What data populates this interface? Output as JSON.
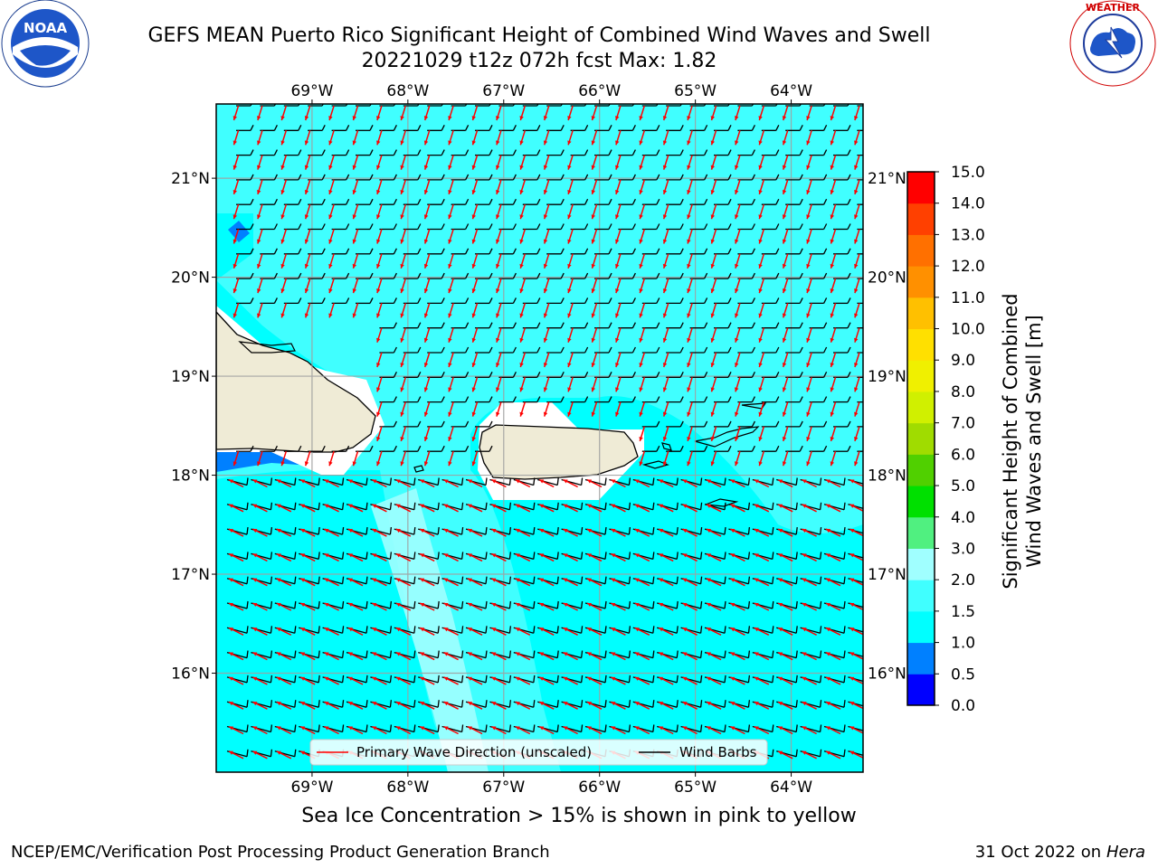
{
  "title": {
    "line1": "GEFS MEAN Puerto Rico Significant Height of Combined Wind Waves and Swell",
    "line2": "20221029 t12z 072h fcst   Max: 1.82"
  },
  "logos": {
    "left": {
      "name": "NOAA",
      "ring_text": "NATIONAL OCEANIC AND ATMOSPHERIC ADMINISTRATION",
      "bottom_text": "U.S. DEPARTMENT OF COMMERCE"
    },
    "right": {
      "name": "National Weather Service",
      "ring_text": "NATIONAL WEATHER SERVICE"
    }
  },
  "map": {
    "lon_ticks": [
      "69°W",
      "68°W",
      "67°W",
      "66°W",
      "65°W",
      "64°W"
    ],
    "lat_ticks": [
      "21°N",
      "20°N",
      "19°N",
      "18°N",
      "17°N",
      "16°N"
    ],
    "lon_range": [
      -70.0,
      -63.25
    ],
    "lat_range": [
      15.0,
      21.75
    ],
    "grid": true,
    "legend": {
      "placement": "bottom-center",
      "entries": [
        {
          "label": "Primary Wave Direction (unscaled)",
          "color": "#ff0000"
        },
        {
          "label": "Wind Barbs",
          "color": "#000000"
        }
      ]
    },
    "colors": {
      "ocean_1_0_1_5": "#00ffff",
      "ocean_1_5_2_0": "#40ffff",
      "ocean_2_0_3_0": "#a0ffff",
      "land": "#efebd6",
      "arrow": "#ff0000",
      "barb": "#000000"
    }
  },
  "colorbar": {
    "label_line1": "Significant Height of Combined",
    "label_line2": "Wind Waves and Swell [m]",
    "ticks": [
      "0.0",
      "0.5",
      "1.0",
      "1.5",
      "2.0",
      "3.0",
      "4.0",
      "5.0",
      "6.0",
      "7.0",
      "8.0",
      "9.0",
      "10.0",
      "11.0",
      "12.0",
      "13.0",
      "14.0",
      "15.0"
    ],
    "colors": [
      "#0000ff",
      "#0080ff",
      "#00ffff",
      "#40ffff",
      "#a0ffff",
      "#50f080",
      "#00e000",
      "#50d000",
      "#a0dc00",
      "#d0f000",
      "#f0f000",
      "#ffe000",
      "#ffc000",
      "#ff9000",
      "#ff7000",
      "#ff4000",
      "#ff0000"
    ]
  },
  "footnote": "Sea Ice Concentration > 15% is shown in pink to yellow",
  "credits": {
    "left": "NCEP/EMC/Verification Post Processing Product Generation Branch",
    "right_prefix": "31 Oct 2022 on ",
    "right_machine": "Hera"
  }
}
